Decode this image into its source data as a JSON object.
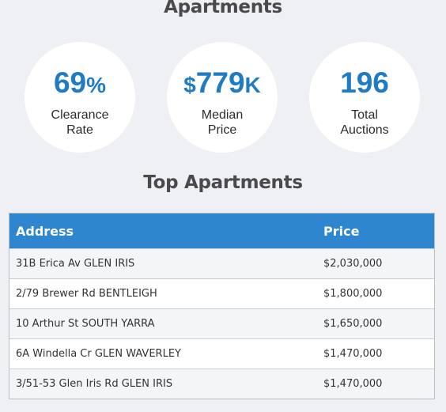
{
  "header": {
    "title": "Apartments"
  },
  "stats": [
    {
      "prefix": "",
      "value": "69",
      "suffix": "%",
      "label_line1": "Clearance",
      "label_line2": "Rate"
    },
    {
      "prefix": "$",
      "value": "779",
      "suffix": "K",
      "label_line1": "Median",
      "label_line2": "Price"
    },
    {
      "prefix": "",
      "value": "196",
      "suffix": "",
      "label_line1": "Total",
      "label_line2": "Auctions"
    }
  ],
  "top": {
    "title": "Top Apartments",
    "columns": [
      "Address",
      "Price"
    ],
    "rows": [
      {
        "address": "31B Erica Av GLEN IRIS",
        "price": "$2,030,000"
      },
      {
        "address": "2/79 Brewer Rd BENTLEIGH",
        "price": "$1,800,000"
      },
      {
        "address": "10 Arthur St SOUTH YARRA",
        "price": "$1,650,000"
      },
      {
        "address": "6A Windella Cr GLEN WAVERLEY",
        "price": "$1,470,000"
      },
      {
        "address": "3/51-53 Glen Iris Rd GLEN IRIS",
        "price": "$1,470,000"
      }
    ]
  },
  "colors": {
    "accent": "#1e7bc4",
    "header_bg": "#2e86cf",
    "page_bg": "#eef0f3"
  }
}
